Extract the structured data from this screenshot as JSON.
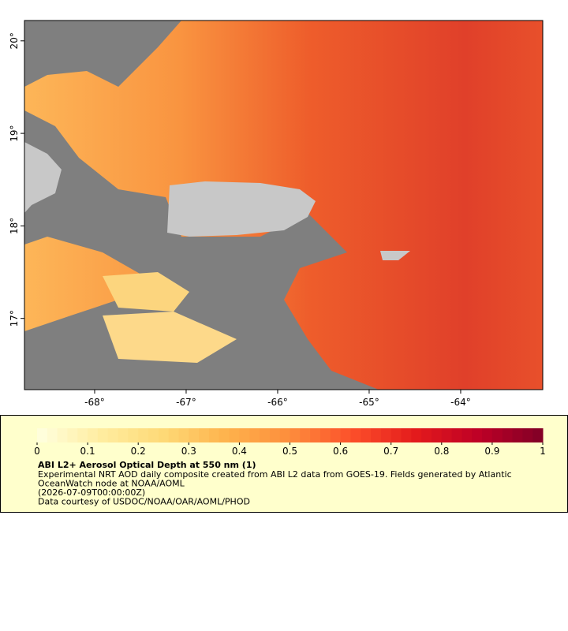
{
  "chart_data": {
    "type": "map",
    "xlim": [
      -68.767,
      -63.103
    ],
    "ylim": [
      16.23,
      20.22
    ],
    "xticks": [
      {
        "value": -68,
        "label": "-68°"
      },
      {
        "value": -67,
        "label": "-67°"
      },
      {
        "value": -66,
        "label": "-66°"
      },
      {
        "value": -65,
        "label": "-65°"
      },
      {
        "value": -64,
        "label": "-64°"
      }
    ],
    "yticks": [
      {
        "value": 17,
        "label": "17°"
      },
      {
        "value": 18,
        "label": "18°"
      },
      {
        "value": 19,
        "label": "19°"
      },
      {
        "value": 20,
        "label": "20°"
      }
    ],
    "colorbar": {
      "lim": [
        0,
        1
      ],
      "ticks": [
        0,
        0.1,
        0.2,
        0.3,
        0.4,
        0.5,
        0.6,
        0.7,
        0.8,
        0.9,
        1
      ],
      "colormap": [
        "#ffffe0",
        "#ffeda0",
        "#fed976",
        "#feb24c",
        "#fd8d3c",
        "#fc4e2a",
        "#e31a1c",
        "#bd0026",
        "#800026"
      ]
    },
    "title": "ABI L2+ Aerosol Optical Depth at 550 nm (1)",
    "description": [
      "Experimental NRT AOD daily composite created from ABI L2 data from GOES-19. Fields generated by Atlantic",
      "OceanWatch node at NOAA/AOML",
      "(2026-07-09T00:00:00Z)",
      "Data courtesy of USDOC/NOAA/OAR/AOML/PHOD"
    ]
  }
}
